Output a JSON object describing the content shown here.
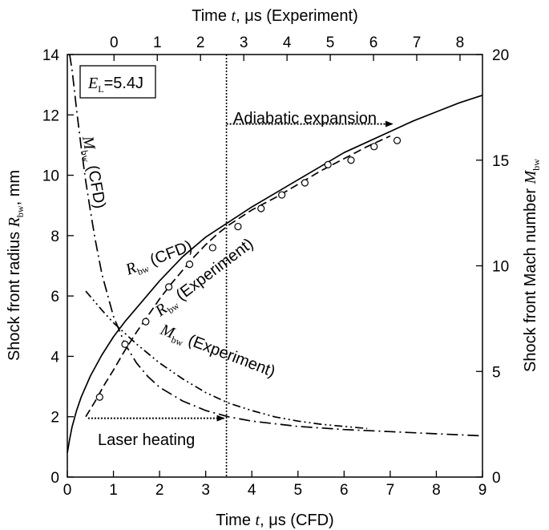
{
  "chart_data": {
    "type": "line",
    "bottom_axis": {
      "label": "Time t, μs (CFD)",
      "range": [
        0,
        9
      ],
      "ticks": [
        0,
        1,
        2,
        3,
        4,
        5,
        6,
        7,
        8,
        9
      ]
    },
    "top_axis": {
      "label": "Time t, μs (Experiment)",
      "range": [
        -1.08,
        8.52
      ],
      "ticks": [
        0,
        1,
        2,
        3,
        4,
        5,
        6,
        7,
        8
      ]
    },
    "left_axis": {
      "label": "Shock front radius R_bw, mm",
      "range": [
        0,
        14
      ],
      "ticks": [
        0,
        2,
        4,
        6,
        8,
        10,
        12,
        14
      ]
    },
    "right_axis": {
      "label": "Shock front Mach number M_bw",
      "range": [
        0,
        20
      ],
      "ticks": [
        0,
        5,
        10,
        15,
        20
      ]
    },
    "grid": false,
    "vertical_marker_x_cfd": 3.45,
    "energy_label": "E_L=5.4J",
    "series": [
      {
        "name": "R_bw (CFD)",
        "axis": "left",
        "style": "solid",
        "x": [
          0,
          0.05,
          0.1,
          0.2,
          0.3,
          0.5,
          0.75,
          1.0,
          1.25,
          1.5,
          2.0,
          2.5,
          3.0,
          3.5,
          4.0,
          4.5,
          5.0,
          5.5,
          6.0,
          6.5,
          7.0,
          7.5,
          8.0,
          8.5,
          9.0
        ],
        "y": [
          0.8,
          1.25,
          1.65,
          2.2,
          2.65,
          3.35,
          4.05,
          4.65,
          5.15,
          5.6,
          6.5,
          7.3,
          7.95,
          8.45,
          8.95,
          9.4,
          9.85,
          10.3,
          10.75,
          11.1,
          11.45,
          11.8,
          12.1,
          12.4,
          12.65
        ]
      },
      {
        "name": "R_bw (Experiment)",
        "axis": "left",
        "style": "dashed",
        "x": [
          0.4,
          0.6,
          0.8,
          1.0,
          1.25,
          1.5,
          1.75,
          2.0,
          2.25,
          2.5,
          2.75,
          3.0,
          3.25,
          3.5,
          3.75,
          4.0,
          4.25,
          4.5,
          5.0,
          5.5,
          6.0,
          6.5,
          7.0
        ],
        "y": [
          2.0,
          2.5,
          3.05,
          3.55,
          4.2,
          4.8,
          5.35,
          5.9,
          6.4,
          6.85,
          7.3,
          7.7,
          8.05,
          8.35,
          8.6,
          8.85,
          9.05,
          9.25,
          9.7,
          10.15,
          10.55,
          10.95,
          11.3
        ]
      },
      {
        "name": "R_bw (Experiment) data",
        "axis": "left",
        "style": "markers",
        "x": [
          0.7,
          1.25,
          1.7,
          2.2,
          2.65,
          3.15,
          3.7,
          4.2,
          4.65,
          5.15,
          5.65,
          6.15,
          6.65,
          7.15
        ],
        "y": [
          2.65,
          4.4,
          5.15,
          6.3,
          7.05,
          7.6,
          8.3,
          8.9,
          9.35,
          9.75,
          10.35,
          10.5,
          10.95,
          11.15
        ]
      },
      {
        "name": "M_bw (CFD)",
        "axis": "right",
        "style": "dashdot",
        "x": [
          0.05,
          0.1,
          0.15,
          0.2,
          0.3,
          0.4,
          0.5,
          0.6,
          0.75,
          1.0,
          1.25,
          1.5,
          1.75,
          2.0,
          2.5,
          3.0,
          3.5,
          4.0,
          5.0,
          6.0,
          7.0,
          8.0,
          9.0
        ],
        "y": [
          20.0,
          19.3,
          18.4,
          17.4,
          15.6,
          14.0,
          12.6,
          11.3,
          9.6,
          7.6,
          6.3,
          5.4,
          4.75,
          4.25,
          3.6,
          3.15,
          2.85,
          2.65,
          2.4,
          2.25,
          2.15,
          2.05,
          1.95
        ]
      },
      {
        "name": "M_bw (Experiment)",
        "axis": "right",
        "style": "dashdotdot",
        "x": [
          0.4,
          0.75,
          1.0,
          1.5,
          2.0,
          2.5,
          3.0,
          3.5,
          4.0,
          4.5,
          5.0,
          5.5,
          6.0,
          6.5
        ],
        "y": [
          8.8,
          7.9,
          7.3,
          6.3,
          5.4,
          4.65,
          4.0,
          3.5,
          3.15,
          2.85,
          2.65,
          2.5,
          2.4,
          2.3
        ]
      }
    ],
    "annotations": [
      {
        "text": "Laser heating",
        "arrow_from_x": 0.45,
        "arrow_to_x": 3.45,
        "arrow_y": 1.95
      },
      {
        "text": "Adiabatic expansion",
        "arrow_from_x": 3.45,
        "arrow_to_x": 7.05,
        "arrow_y": 11.7
      },
      {
        "main": "R",
        "sub": "bw",
        "tail": " (CFD)"
      },
      {
        "main": "R",
        "sub": "bw",
        "tail": " (Experiment)"
      },
      {
        "main": "M",
        "sub": "bw",
        "tail": " (CFD)"
      },
      {
        "main": "M",
        "sub": "bw",
        "tail": " (Experiment)"
      }
    ]
  }
}
